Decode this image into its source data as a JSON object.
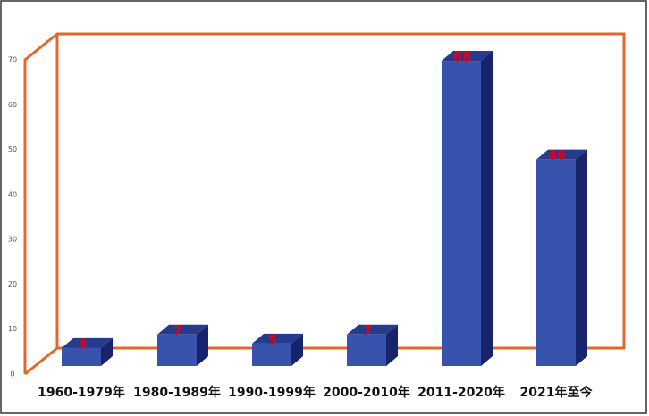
{
  "chart_data": {
    "type": "bar",
    "categories": [
      "1960-1979年",
      "1980-1989年",
      "1990-1999年",
      "2000-2010年",
      "2011-2020年",
      "2021年至今"
    ],
    "values": [
      4,
      7,
      5,
      7,
      68,
      46
    ],
    "color": "#3853ae",
    "ylim": [
      0,
      70
    ],
    "yticks": [
      0,
      10,
      20,
      30,
      40,
      50,
      60,
      70
    ],
    "grid": false
  }
}
